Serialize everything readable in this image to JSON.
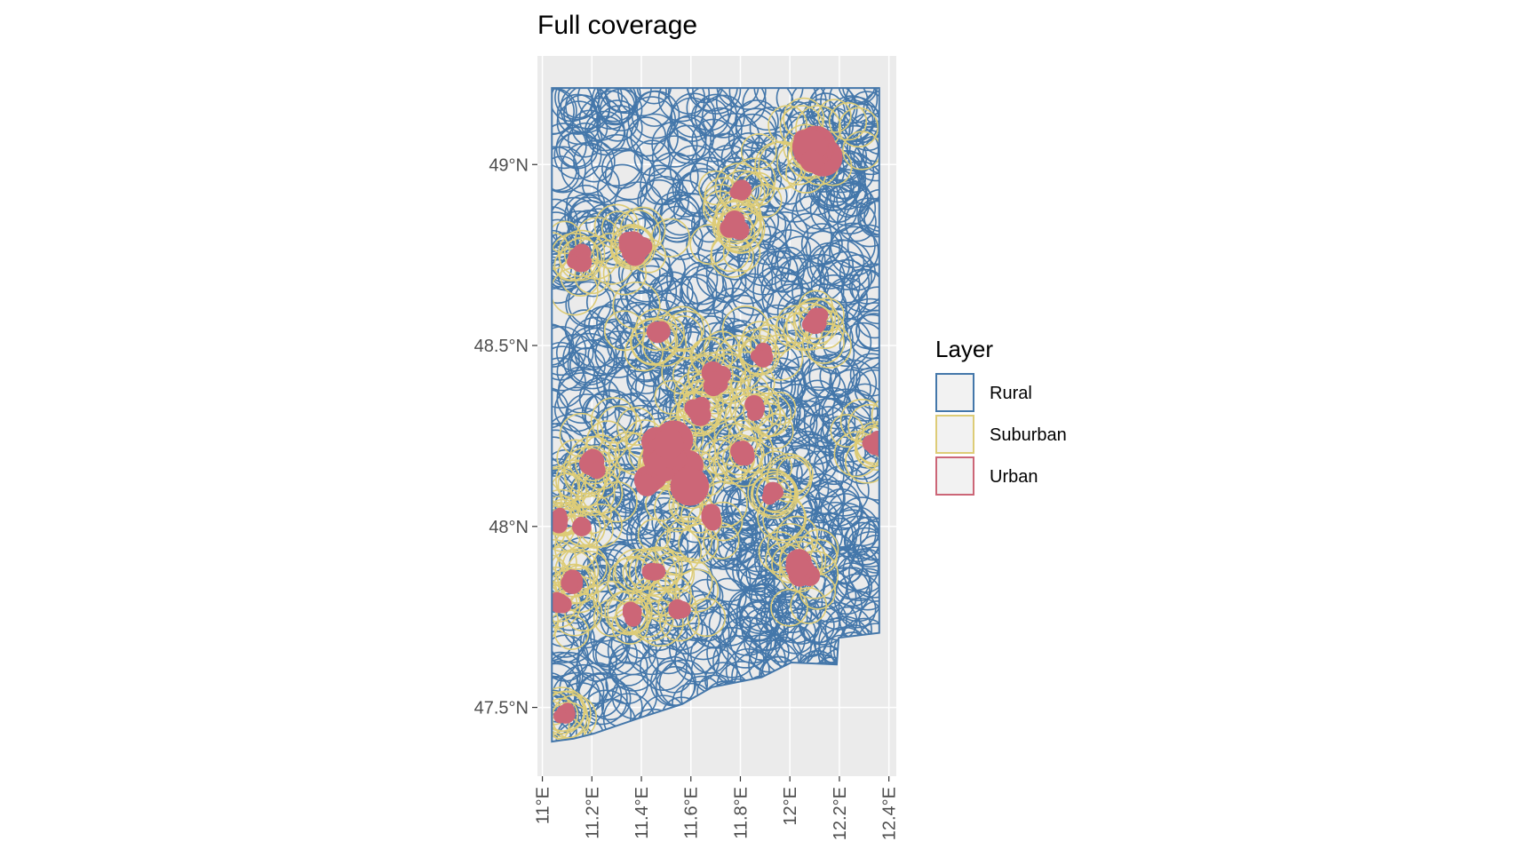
{
  "chart_data": {
    "type": "map",
    "title": "Full coverage",
    "xlim": [
      10.98,
      12.43
    ],
    "ylim": [
      47.31,
      49.3
    ],
    "xticks": [
      {
        "value": 11,
        "label": "11°E"
      },
      {
        "value": 11.2,
        "label": "11.2°E"
      },
      {
        "value": 11.4,
        "label": "11.4°E"
      },
      {
        "value": 11.6,
        "label": "11.6°E"
      },
      {
        "value": 11.8,
        "label": "11.8°E"
      },
      {
        "value": 12,
        "label": "12°E"
      },
      {
        "value": 12.2,
        "label": "12.2°E"
      },
      {
        "value": 12.4,
        "label": "12.4°E"
      }
    ],
    "yticks": [
      {
        "value": 47.5,
        "label": "47.5°N"
      },
      {
        "value": 48,
        "label": "48°N"
      },
      {
        "value": 48.5,
        "label": "48.5°N"
      },
      {
        "value": 49,
        "label": "49°N"
      }
    ],
    "grid": true,
    "legend": {
      "title": "Layer",
      "position": "right"
    },
    "series": [
      {
        "name": "Rural",
        "color": "#4477aa"
      },
      {
        "name": "Suburban",
        "color": "#ddcc77"
      },
      {
        "name": "Urban",
        "color": "#cc6677"
      }
    ]
  }
}
